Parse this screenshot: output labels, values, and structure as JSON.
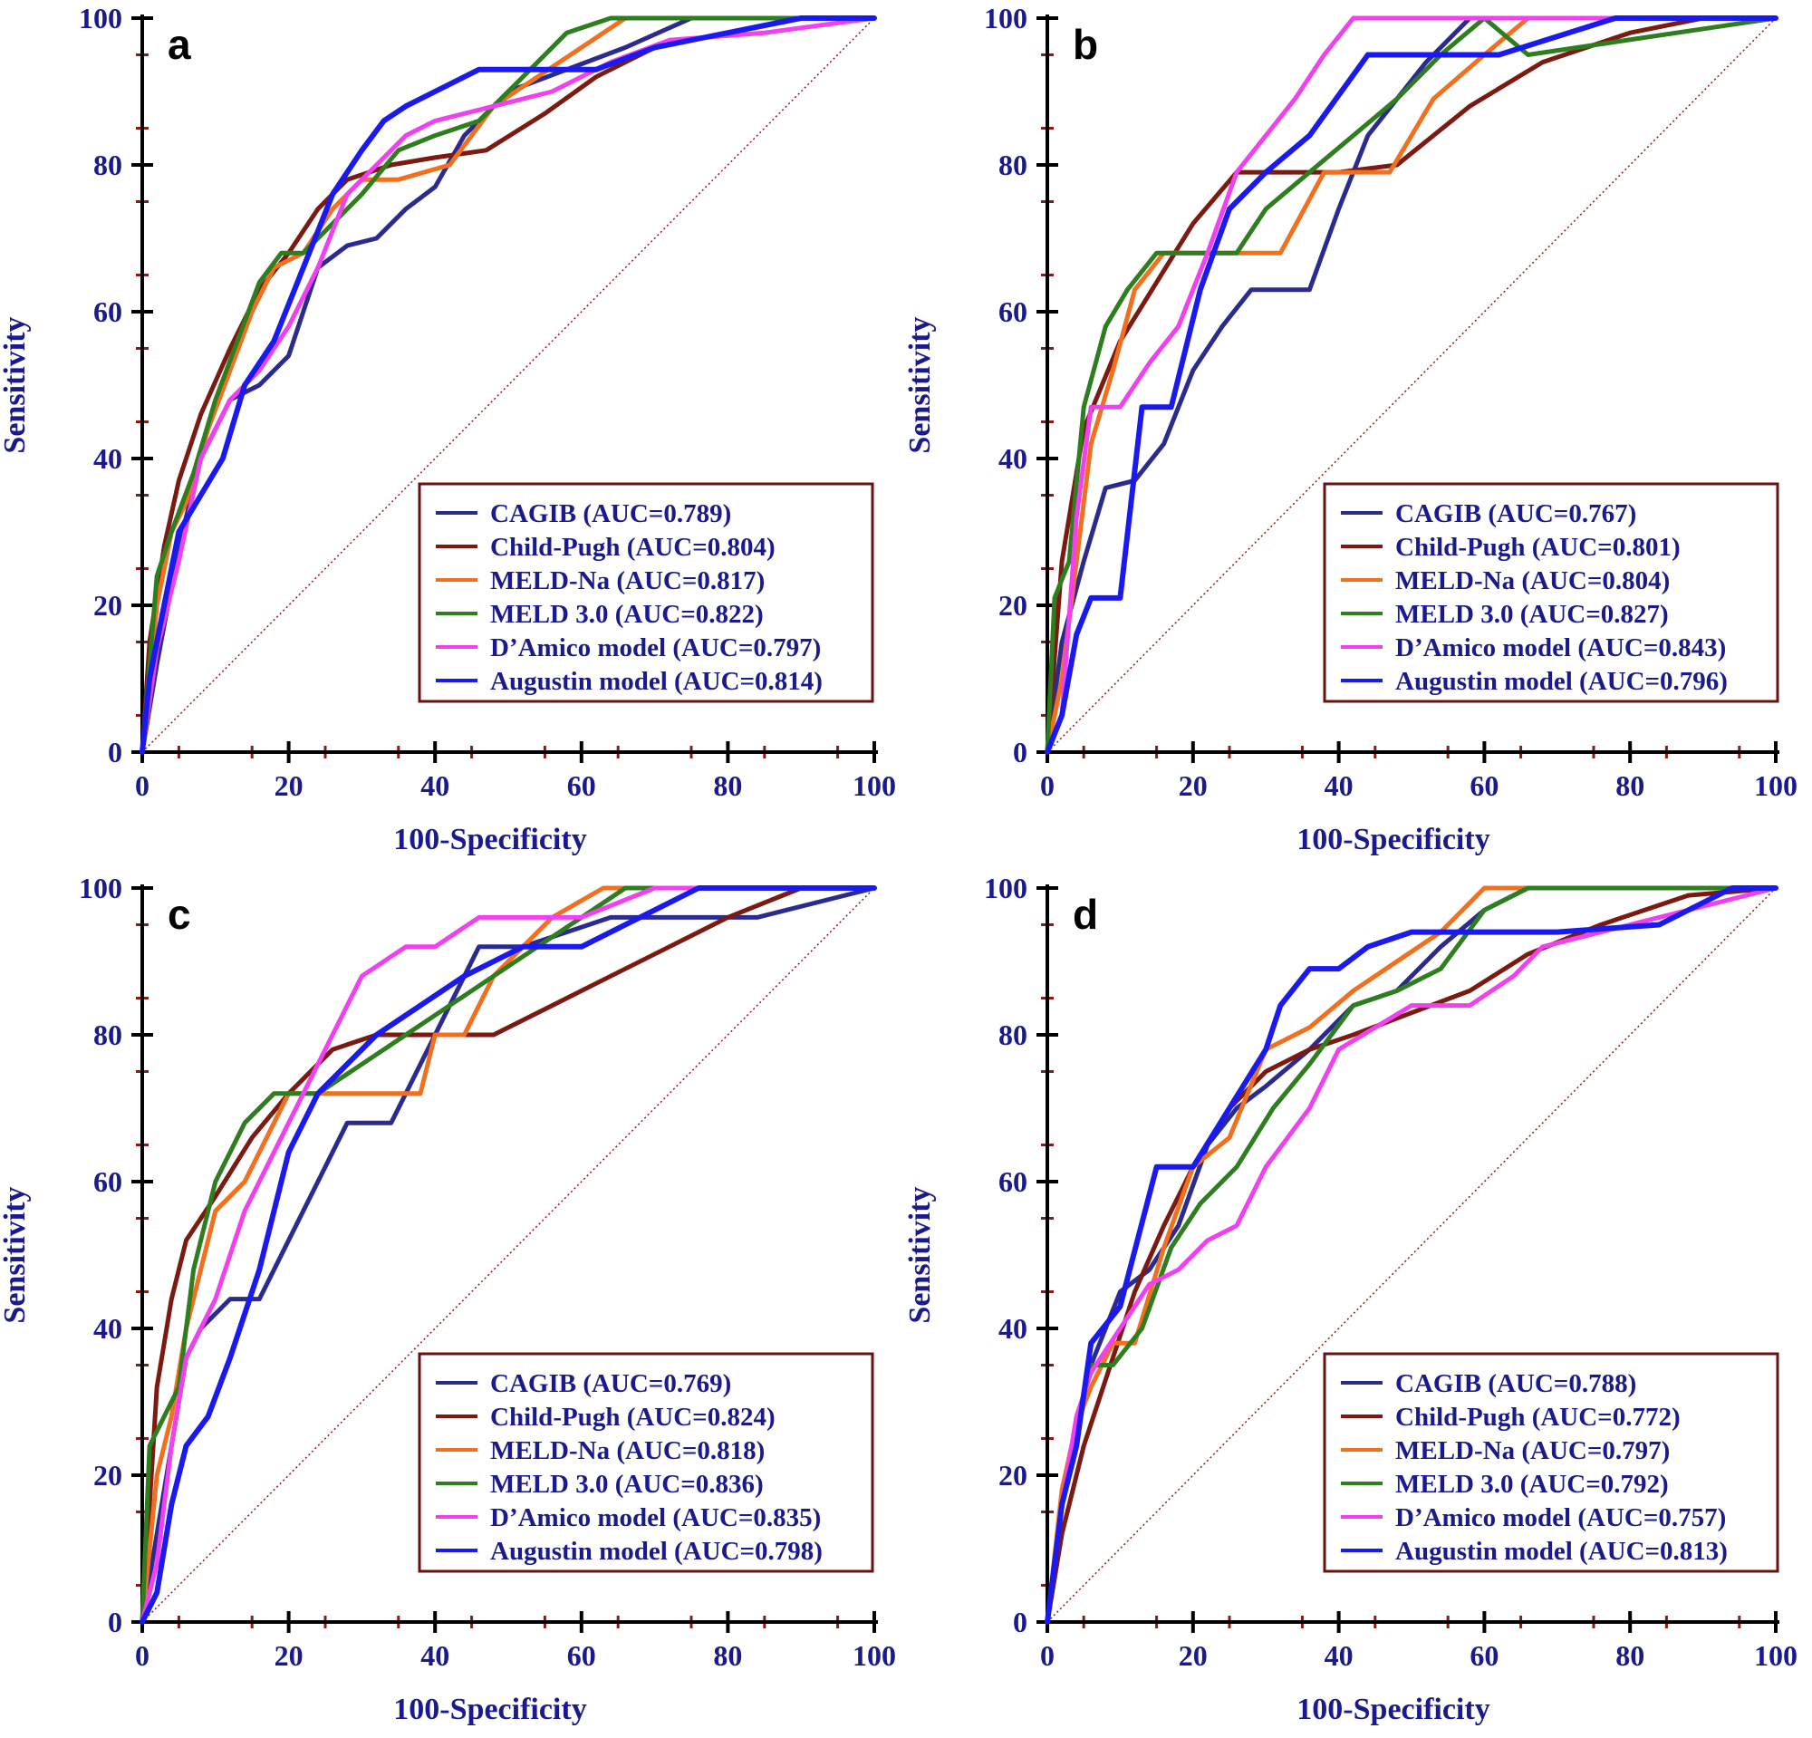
{
  "colors": {
    "axis": "#000000",
    "tick_label": "#1a1a8c",
    "minor_tick": "#8b1a1a",
    "diagonal": "#8b1a1a",
    "legend_border": "#6b1010",
    "series": {
      "CAGIB": "#2b2b8f",
      "Child-Pugh": "#7a1a10",
      "MELD-Na": "#f07020",
      "MELD 3.0": "#2e7d1e",
      "D'Amico model": "#f040f0",
      "Augustin model": "#1a1aee"
    }
  },
  "chart_data": [
    {
      "type": "line",
      "panel": "a",
      "xlabel": "100-Specificity",
      "ylabel": "Sensitivity",
      "xlim": [
        0,
        100
      ],
      "ylim": [
        0,
        100
      ],
      "xticks": [
        "0",
        "20",
        "40",
        "60",
        "80",
        "100"
      ],
      "yticks": [
        "0",
        "20",
        "40",
        "60",
        "80",
        "100"
      ],
      "legend_position": "bottom-right",
      "series": [
        {
          "name": "CAGIB",
          "auc_label": "CAGIB (AUC=0.789)",
          "x": [
            0,
            2,
            5,
            8,
            12,
            16,
            20,
            24,
            28,
            32,
            36,
            40,
            44,
            50,
            58,
            66,
            75,
            100
          ],
          "y": [
            0,
            12,
            28,
            40,
            48,
            50,
            54,
            66,
            69,
            70,
            74,
            77,
            84,
            90,
            93,
            96,
            100,
            100
          ]
        },
        {
          "name": "Child-Pugh",
          "auc_label": "Child-Pugh (AUC=0.804)",
          "x": [
            0,
            1,
            3,
            5,
            8,
            12,
            16,
            20,
            24,
            28,
            34,
            40,
            47,
            55,
            62,
            70,
            80,
            90,
            100
          ],
          "y": [
            0,
            15,
            28,
            37,
            46,
            55,
            63,
            68,
            74,
            78,
            80,
            81,
            82,
            87,
            92,
            96,
            98,
            100,
            100
          ]
        },
        {
          "name": "MELD-Na",
          "auc_label": "MELD-Na (AUC=0.817)",
          "x": [
            0,
            2,
            4,
            6,
            9,
            12,
            15,
            18,
            22,
            26,
            30,
            35,
            42,
            48,
            54,
            60,
            66,
            100
          ],
          "y": [
            0,
            20,
            30,
            34,
            44,
            52,
            60,
            66,
            68,
            74,
            78,
            78,
            80,
            88,
            92,
            96,
            100,
            100
          ]
        },
        {
          "name": "MELD 3.0",
          "auc_label": "MELD 3.0 (AUC=0.822)",
          "x": [
            0,
            2,
            4,
            7,
            10,
            13,
            16,
            19,
            22,
            26,
            30,
            35,
            40,
            46,
            52,
            58,
            64,
            100
          ],
          "y": [
            0,
            24,
            30,
            38,
            48,
            56,
            64,
            68,
            68,
            72,
            76,
            82,
            84,
            86,
            92,
            98,
            100,
            100
          ]
        },
        {
          "name": "D'Amico model",
          "auc_label": "D’Amico model (AUC=0.797)",
          "x": [
            0,
            2,
            5,
            8,
            12,
            16,
            20,
            24,
            28,
            32,
            36,
            40,
            48,
            56,
            64,
            72,
            85,
            100
          ],
          "y": [
            0,
            14,
            26,
            40,
            48,
            52,
            58,
            66,
            76,
            80,
            84,
            86,
            88,
            90,
            94,
            97,
            98,
            100
          ]
        },
        {
          "name": "Augustin model",
          "auc_label": "Augustin model (AUC=0.814)",
          "x": [
            0,
            1,
            3,
            5,
            8,
            11,
            14,
            18,
            22,
            26,
            30,
            33,
            36,
            40,
            46,
            62,
            70,
            80,
            90,
            100
          ],
          "y": [
            0,
            10,
            20,
            30,
            35,
            40,
            50,
            56,
            66,
            76,
            82,
            86,
            88,
            90,
            93,
            93,
            96,
            98,
            100,
            100
          ]
        }
      ]
    },
    {
      "type": "line",
      "panel": "b",
      "xlabel": "100-Specificity",
      "ylabel": "Sensitivity",
      "xlim": [
        0,
        100
      ],
      "ylim": [
        0,
        100
      ],
      "xticks": [
        "0",
        "20",
        "40",
        "60",
        "80",
        "100"
      ],
      "yticks": [
        "0",
        "20",
        "40",
        "60",
        "80",
        "100"
      ],
      "legend_position": "bottom-right",
      "series": [
        {
          "name": "CAGIB",
          "auc_label": "CAGIB (AUC=0.767)",
          "x": [
            0,
            2,
            5,
            8,
            12,
            16,
            20,
            24,
            28,
            36,
            40,
            44,
            52,
            58,
            64,
            100
          ],
          "y": [
            0,
            15,
            26,
            36,
            37,
            42,
            52,
            58,
            63,
            63,
            74,
            84,
            94,
            100,
            100,
            100
          ]
        },
        {
          "name": "Child-Pugh",
          "auc_label": "Child-Pugh (AUC=0.801)",
          "x": [
            0,
            2,
            5,
            10,
            15,
            20,
            26,
            30,
            40,
            48,
            58,
            68,
            80,
            90,
            100
          ],
          "y": [
            0,
            26,
            44,
            56,
            64,
            72,
            79,
            79,
            79,
            80,
            88,
            94,
            98,
            100,
            100
          ]
        },
        {
          "name": "MELD-Na",
          "auc_label": "MELD-Na (AUC=0.804)",
          "x": [
            0,
            2,
            4,
            6,
            9,
            12,
            16,
            20,
            26,
            32,
            38,
            40,
            47,
            53,
            60,
            66,
            100
          ],
          "y": [
            0,
            10,
            26,
            42,
            52,
            63,
            68,
            68,
            68,
            68,
            79,
            79,
            79,
            89,
            95,
            100,
            100
          ]
        },
        {
          "name": "MELD 3.0",
          "auc_label": "MELD 3.0 (AUC=0.827)",
          "x": [
            0,
            1,
            3,
            5,
            8,
            11,
            15,
            20,
            26,
            30,
            36,
            42,
            48,
            54,
            60,
            66,
            100
          ],
          "y": [
            0,
            21,
            26,
            47,
            58,
            63,
            68,
            68,
            68,
            74,
            79,
            84,
            89,
            95,
            100,
            95,
            100
          ]
        },
        {
          "name": "D'Amico model",
          "auc_label": "D’Amico model (AUC=0.843)",
          "x": [
            0,
            2,
            4,
            6,
            10,
            14,
            18,
            22,
            26,
            30,
            34,
            38,
            42,
            46,
            100
          ],
          "y": [
            0,
            5,
            32,
            47,
            47,
            53,
            58,
            68,
            79,
            84,
            89,
            95,
            100,
            100,
            100
          ]
        },
        {
          "name": "Augustin model",
          "auc_label": "Augustin model (AUC=0.796)",
          "x": [
            0,
            2,
            4,
            6,
            10,
            13,
            17,
            21,
            25,
            30,
            36,
            44,
            62,
            78,
            90,
            100
          ],
          "y": [
            0,
            5,
            16,
            21,
            21,
            47,
            47,
            63,
            74,
            79,
            84,
            95,
            95,
            100,
            100,
            100
          ]
        }
      ]
    },
    {
      "type": "line",
      "panel": "c",
      "xlabel": "100-Specificity",
      "ylabel": "Sensitivity",
      "xlim": [
        0,
        100
      ],
      "ylim": [
        0,
        100
      ],
      "xticks": [
        "0",
        "20",
        "40",
        "60",
        "80",
        "100"
      ],
      "yticks": [
        "0",
        "20",
        "40",
        "60",
        "80",
        "100"
      ],
      "legend_position": "bottom-right",
      "series": [
        {
          "name": "CAGIB",
          "auc_label": "CAGIB (AUC=0.769)",
          "x": [
            0,
            2,
            4,
            6,
            8,
            12,
            16,
            20,
            24,
            28,
            34,
            40,
            46,
            52,
            64,
            84,
            100
          ],
          "y": [
            0,
            12,
            24,
            36,
            40,
            44,
            44,
            52,
            60,
            68,
            68,
            80,
            92,
            92,
            96,
            96,
            100
          ]
        },
        {
          "name": "Child-Pugh",
          "auc_label": "Child-Pugh (AUC=0.824)",
          "x": [
            0,
            2,
            4,
            6,
            10,
            15,
            20,
            26,
            32,
            40,
            48,
            56,
            64,
            72,
            80,
            90,
            100
          ],
          "y": [
            0,
            32,
            44,
            52,
            58,
            66,
            72,
            78,
            80,
            80,
            80,
            84,
            88,
            92,
            96,
            100,
            100
          ]
        },
        {
          "name": "MELD-Na",
          "auc_label": "MELD-Na (AUC=0.818)",
          "x": [
            0,
            2,
            4,
            6,
            8,
            10,
            14,
            20,
            26,
            32,
            38,
            40,
            44,
            48,
            56,
            63,
            100
          ],
          "y": [
            0,
            20,
            28,
            40,
            48,
            56,
            60,
            72,
            72,
            72,
            72,
            80,
            80,
            88,
            96,
            100,
            100
          ]
        },
        {
          "name": "MELD 3.0",
          "auc_label": "MELD 3.0 (AUC=0.836)",
          "x": [
            0,
            1,
            3,
            5,
            7,
            10,
            14,
            18,
            24,
            30,
            36,
            42,
            48,
            54,
            60,
            66,
            100
          ],
          "y": [
            0,
            24,
            28,
            32,
            48,
            60,
            68,
            72,
            72,
            76,
            80,
            84,
            88,
            92,
            96,
            100,
            100
          ]
        },
        {
          "name": "D'Amico model",
          "auc_label": "D’Amico model (AUC=0.835)",
          "x": [
            0,
            2,
            4,
            6,
            10,
            14,
            18,
            22,
            26,
            30,
            36,
            40,
            46,
            60,
            70,
            100
          ],
          "y": [
            0,
            8,
            24,
            36,
            44,
            56,
            64,
            72,
            80,
            88,
            92,
            92,
            96,
            96,
            100,
            100
          ]
        },
        {
          "name": "Augustin model",
          "auc_label": "Augustin model (AUC=0.798)",
          "x": [
            0,
            2,
            4,
            6,
            9,
            12,
            16,
            20,
            24,
            28,
            32,
            38,
            44,
            52,
            60,
            68,
            76,
            100
          ],
          "y": [
            0,
            4,
            16,
            24,
            28,
            36,
            48,
            64,
            72,
            76,
            80,
            84,
            88,
            92,
            92,
            96,
            100,
            100
          ]
        }
      ]
    },
    {
      "type": "line",
      "panel": "d",
      "xlabel": "100-Specificity",
      "ylabel": "Sensitivity",
      "xlim": [
        0,
        100
      ],
      "ylim": [
        0,
        100
      ],
      "xticks": [
        "0",
        "20",
        "40",
        "60",
        "80",
        "100"
      ],
      "yticks": [
        "0",
        "20",
        "40",
        "60",
        "80",
        "100"
      ],
      "legend_position": "bottom-right",
      "series": [
        {
          "name": "CAGIB",
          "auc_label": "CAGIB (AUC=0.788)",
          "x": [
            0,
            2,
            4,
            6,
            10,
            14,
            18,
            22,
            26,
            30,
            36,
            42,
            48,
            54,
            60,
            66,
            100
          ],
          "y": [
            0,
            16,
            27,
            35,
            45,
            48,
            54,
            65,
            70,
            73,
            78,
            84,
            86,
            92,
            97,
            100,
            100
          ]
        },
        {
          "name": "Child-Pugh",
          "auc_label": "Child-Pugh (AUC=0.772)",
          "x": [
            0,
            2,
            5,
            8,
            12,
            16,
            20,
            25,
            30,
            36,
            42,
            50,
            58,
            66,
            76,
            88,
            100
          ],
          "y": [
            0,
            12,
            24,
            33,
            45,
            54,
            62,
            70,
            75,
            78,
            80,
            83,
            86,
            91,
            95,
            99,
            100
          ]
        },
        {
          "name": "MELD-Na",
          "auc_label": "MELD-Na (AUC=0.797)",
          "x": [
            0,
            2,
            4,
            6,
            9,
            12,
            16,
            20,
            25,
            30,
            36,
            42,
            48,
            54,
            60,
            100
          ],
          "y": [
            0,
            18,
            27,
            32,
            38,
            38,
            51,
            62,
            66,
            78,
            81,
            86,
            90,
            94,
            100,
            100
          ]
        },
        {
          "name": "MELD 3.0",
          "auc_label": "MELD 3.0 (AUC=0.792)",
          "x": [
            0,
            2,
            4,
            6,
            9,
            13,
            17,
            21,
            26,
            31,
            36,
            42,
            48,
            54,
            60,
            66,
            100
          ],
          "y": [
            0,
            16,
            27,
            35,
            35,
            40,
            51,
            57,
            62,
            70,
            76,
            84,
            86,
            89,
            97,
            100,
            100
          ]
        },
        {
          "name": "D'Amico model",
          "auc_label": "D’Amico model (AUC=0.757)",
          "x": [
            0,
            2,
            4,
            6,
            10,
            14,
            18,
            22,
            26,
            30,
            36,
            40,
            50,
            58,
            64,
            68,
            88,
            100
          ],
          "y": [
            0,
            16,
            28,
            34,
            40,
            46,
            48,
            52,
            54,
            62,
            70,
            78,
            84,
            84,
            88,
            92,
            97,
            100
          ]
        },
        {
          "name": "Augustin model",
          "auc_label": "Augustin model (AUC=0.813)",
          "x": [
            0,
            2,
            4,
            6,
            10,
            15,
            20,
            25,
            30,
            32,
            36,
            40,
            44,
            50,
            58,
            70,
            84,
            94,
            100
          ],
          "y": [
            0,
            16,
            24,
            38,
            43,
            62,
            62,
            70,
            78,
            84,
            89,
            89,
            92,
            94,
            94,
            94,
            95,
            100,
            100
          ]
        }
      ]
    }
  ]
}
